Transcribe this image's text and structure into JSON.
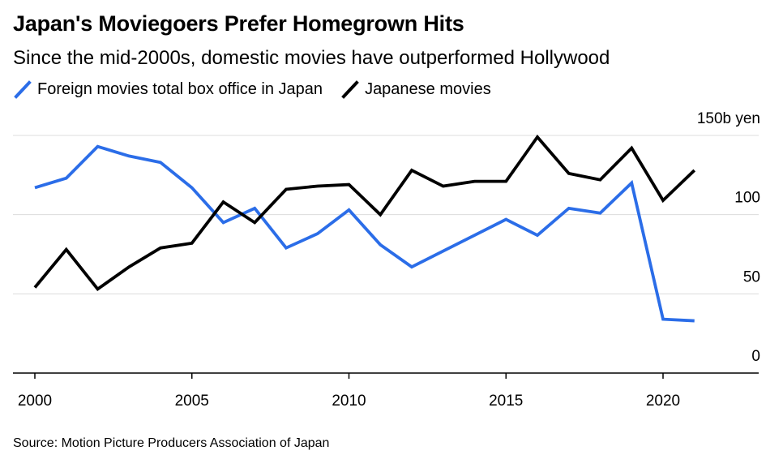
{
  "chart_data": {
    "type": "line",
    "title": "Japan's Moviegoers Prefer Homegrown Hits",
    "subtitle": "Since the mid-2000s, domestic movies have outperformed Hollywood",
    "xlabel": "",
    "ylabel": "",
    "y_unit_label": "150b yen",
    "x": [
      2000,
      2001,
      2002,
      2003,
      2004,
      2005,
      2006,
      2007,
      2008,
      2009,
      2010,
      2011,
      2012,
      2013,
      2014,
      2015,
      2016,
      2017,
      2018,
      2019,
      2020,
      2021
    ],
    "x_ticks": [
      2000,
      2005,
      2010,
      2015,
      2020
    ],
    "x_tick_labels": [
      "2000",
      "2005",
      "2010",
      "2015",
      "2020"
    ],
    "xlim": [
      2000,
      2023.0
    ],
    "ylim": [
      0,
      150
    ],
    "y_ticks": [
      0,
      50,
      100,
      150
    ],
    "y_tick_labels": [
      "0",
      "50",
      "100",
      "150b yen"
    ],
    "grid": true,
    "legend_position": "top-left",
    "series": [
      {
        "name": "Foreign movies total box office in Japan",
        "color": "#2b6de8",
        "values": [
          117,
          123,
          143,
          137,
          133,
          117,
          95,
          104,
          79,
          88,
          103,
          81,
          67,
          77,
          87,
          97,
          87,
          104,
          101,
          120,
          34,
          33
        ]
      },
      {
        "name": "Japanese movies",
        "color": "#000000",
        "values": [
          54,
          78,
          53,
          67,
          79,
          82,
          108,
          95,
          116,
          118,
          119,
          100,
          128,
          118,
          121,
          121,
          149,
          126,
          122,
          142,
          109,
          128
        ]
      }
    ]
  },
  "footer": {
    "source": "Source: Motion Picture Producers Association of Japan"
  }
}
